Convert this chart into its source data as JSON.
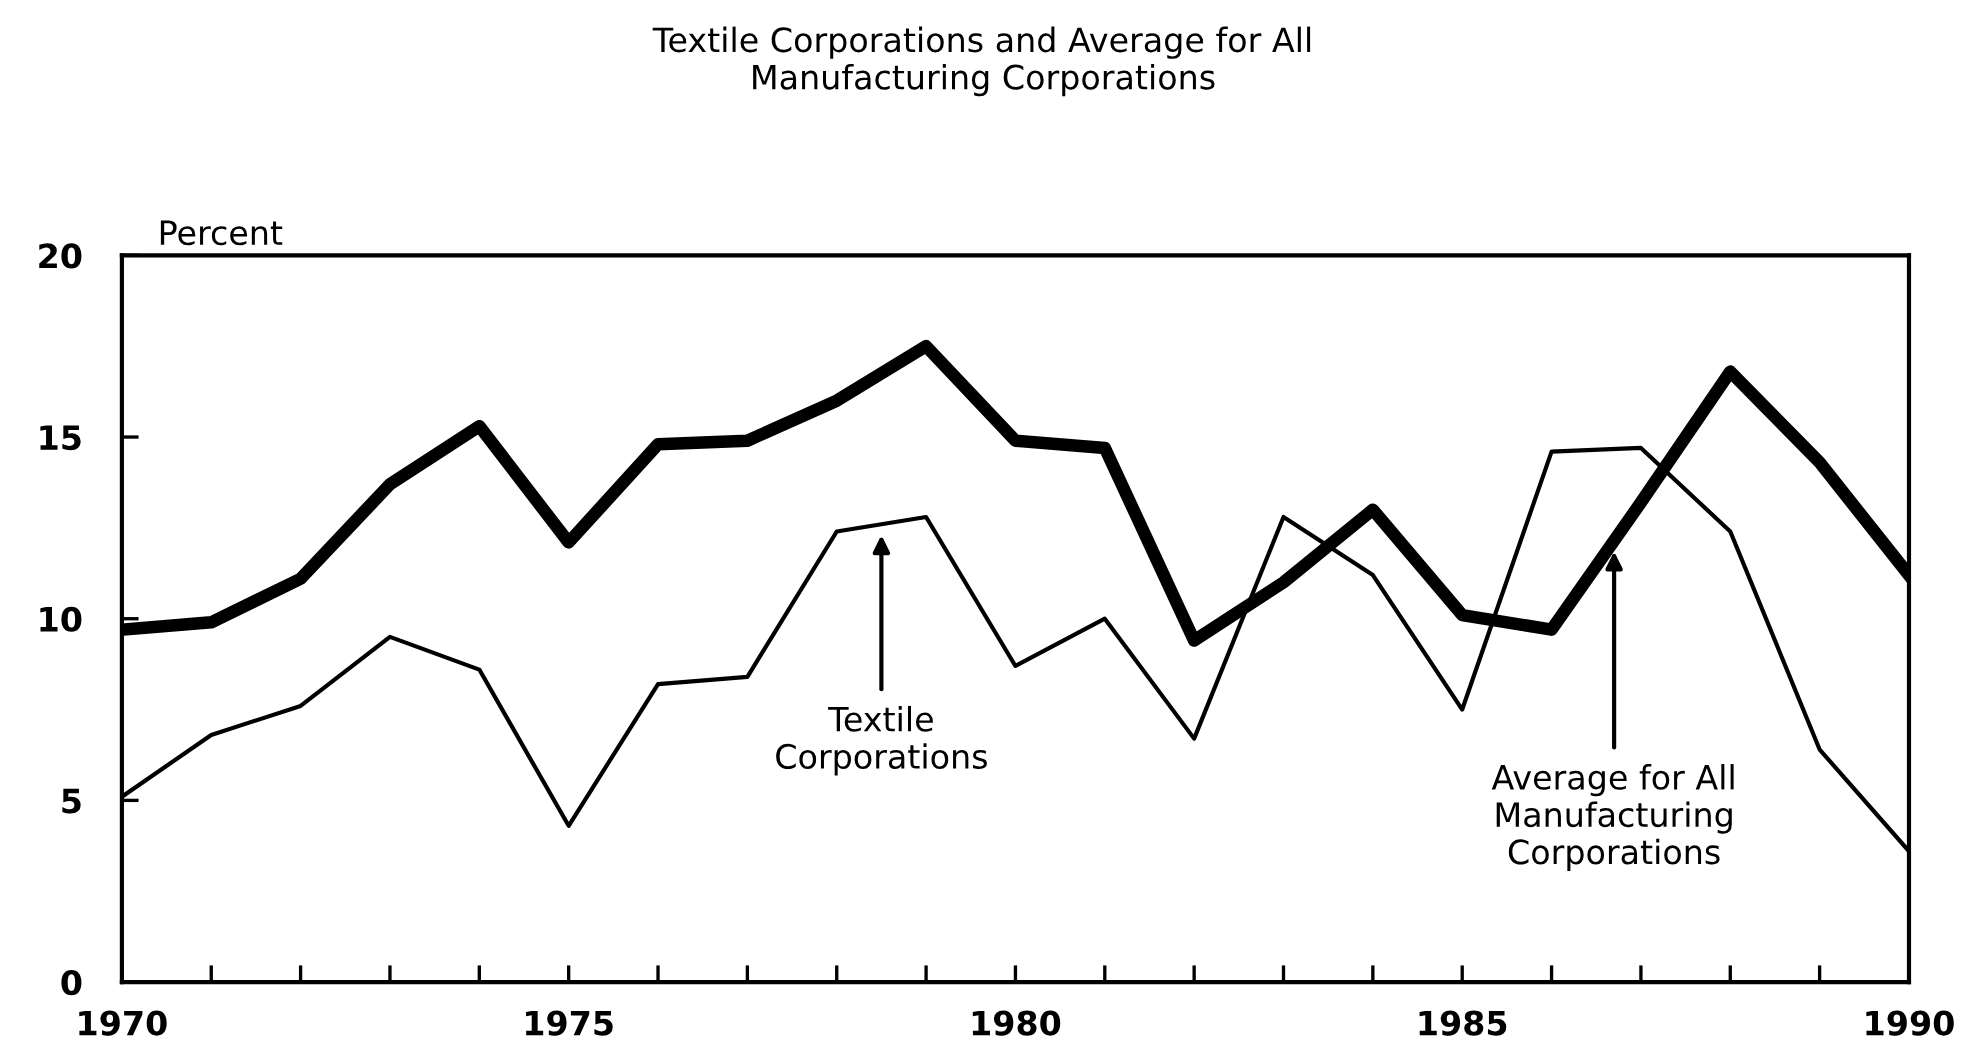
{
  "chart_data": {
    "type": "line",
    "title": "Textile Corporations and Average for All\nManufacturing Corporations",
    "ylabel": "Percent",
    "x": [
      1970,
      1971,
      1972,
      1973,
      1974,
      1975,
      1976,
      1977,
      1978,
      1979,
      1980,
      1981,
      1982,
      1983,
      1984,
      1985,
      1986,
      1987,
      1988,
      1989,
      1990
    ],
    "series": [
      {
        "name": "Average for All\nManufacturing\nCorporations",
        "color": "#000000",
        "values": [
          9.7,
          9.9,
          11.1,
          13.7,
          15.3,
          12.1,
          14.8,
          14.9,
          16.0,
          17.5,
          14.9,
          14.7,
          9.4,
          11.0,
          13.0,
          10.1,
          9.7,
          13.2,
          16.8,
          14.3,
          11.2
        ]
      },
      {
        "name": "Textile\nCorporations",
        "color": "#000000",
        "values": [
          5.1,
          6.8,
          7.6,
          9.5,
          8.6,
          4.3,
          8.2,
          8.4,
          12.4,
          12.8,
          8.7,
          10.0,
          6.7,
          12.8,
          11.2,
          7.5,
          14.6,
          14.7,
          12.4,
          6.4,
          3.6
        ]
      }
    ],
    "xlim": [
      1970,
      1990
    ],
    "ylim": [
      0,
      20
    ],
    "xticks": [
      1970,
      {
        "value": 1971,
        "label": null
      },
      {
        "value": 1972,
        "label": null
      },
      {
        "value": 1973,
        "label": null
      },
      {
        "value": 1974,
        "label": null
      },
      1975,
      {
        "value": 1976,
        "label": null
      },
      {
        "value": 1977,
        "label": null
      },
      {
        "value": 1978,
        "label": null
      },
      {
        "value": 1979,
        "label": null
      },
      1980,
      {
        "value": 1981,
        "label": null
      },
      {
        "value": 1982,
        "label": null
      },
      {
        "value": 1983,
        "label": null
      },
      {
        "value": 1984,
        "label": null
      },
      1985,
      {
        "value": 1986,
        "label": null
      },
      {
        "value": 1987,
        "label": null
      },
      {
        "value": 1988,
        "label": null
      },
      {
        "value": 1989,
        "label": null
      },
      1990
    ],
    "yticks": [
      0,
      5,
      10,
      15,
      20
    ],
    "grid": false,
    "legend": false,
    "marker": "none",
    "line_style": "solid"
  }
}
